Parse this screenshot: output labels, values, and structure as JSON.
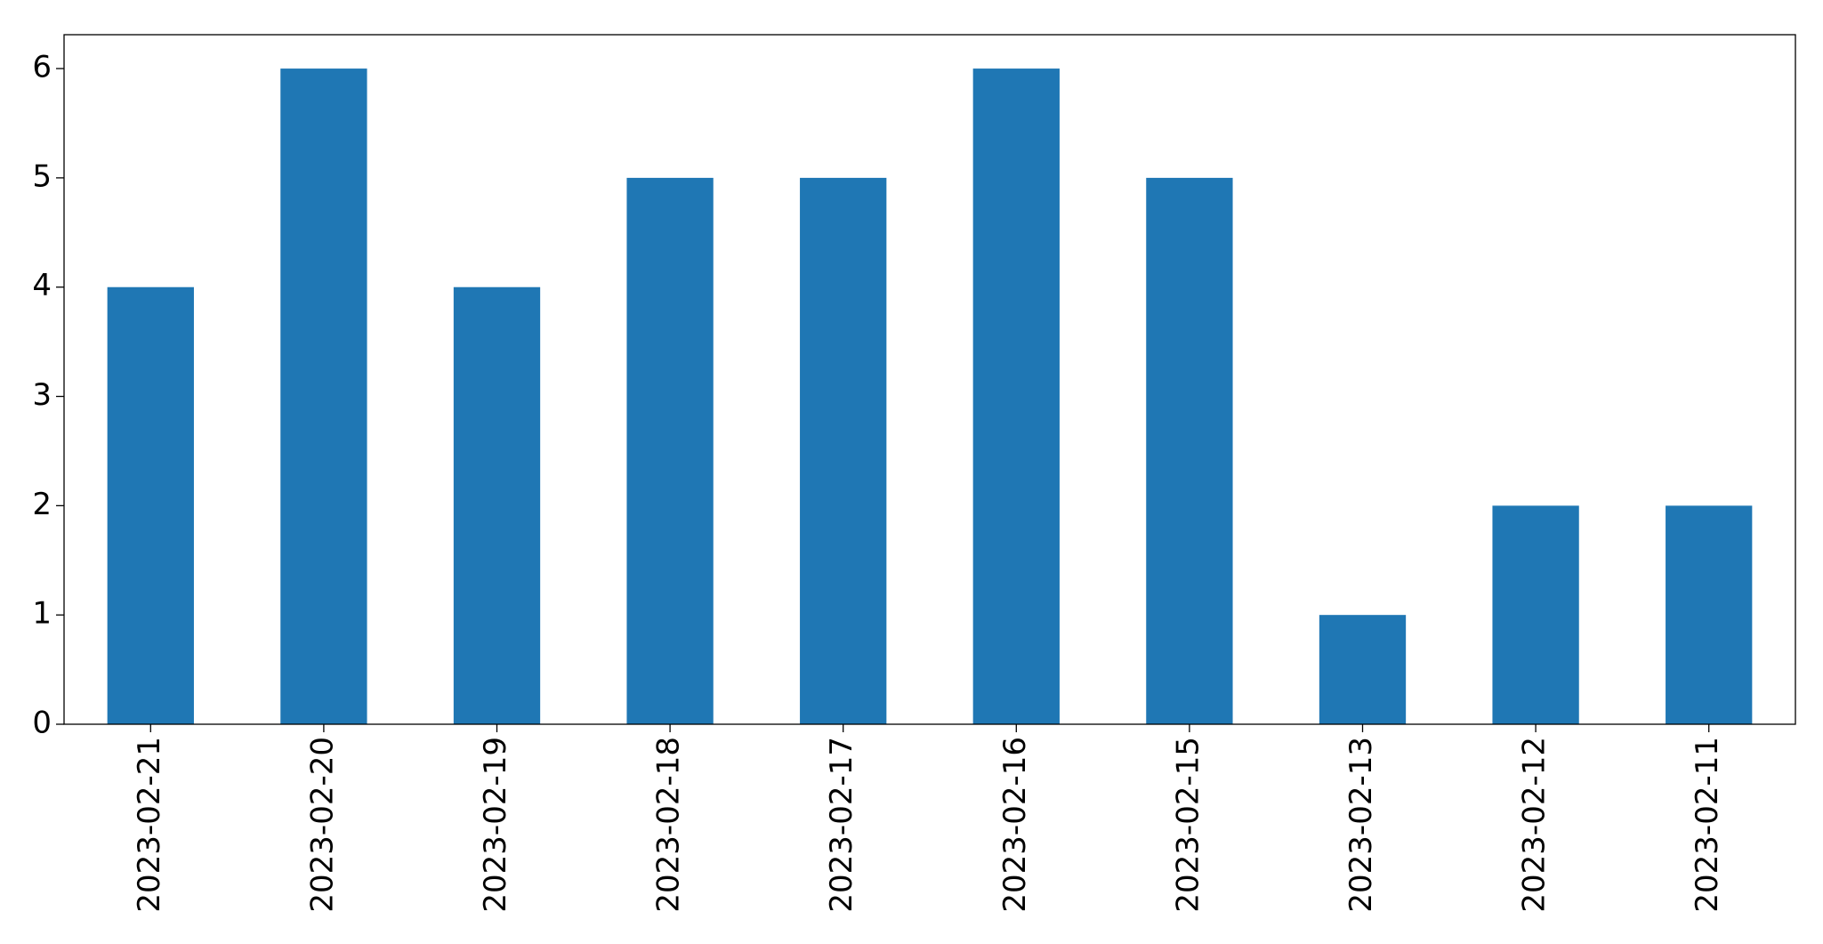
{
  "chart_data": {
    "type": "bar",
    "categories": [
      "2023-02-21",
      "2023-02-20",
      "2023-02-19",
      "2023-02-18",
      "2023-02-17",
      "2023-02-16",
      "2023-02-15",
      "2023-02-13",
      "2023-02-12",
      "2023-02-11"
    ],
    "values": [
      4,
      6,
      4,
      5,
      5,
      6,
      5,
      1,
      2,
      2
    ],
    "color": "#1f77b4",
    "ylim": [
      0,
      6.31
    ],
    "yticks": [
      0,
      1,
      2,
      3,
      4,
      5,
      6
    ],
    "grid": false
  }
}
